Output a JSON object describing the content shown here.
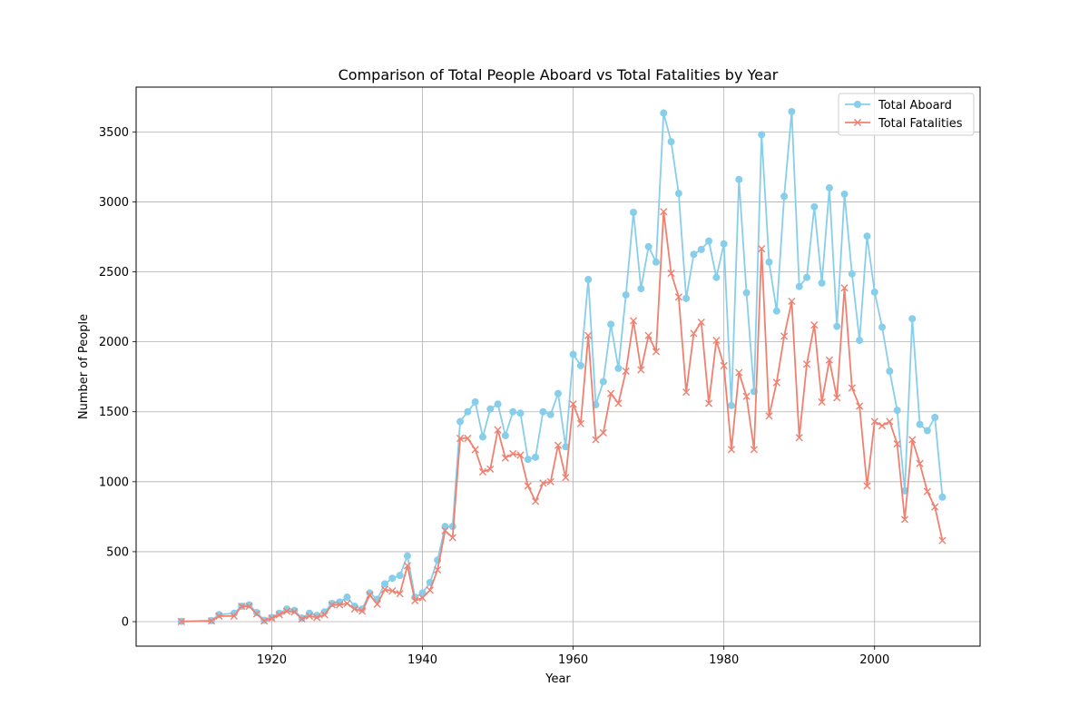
{
  "chart_data": {
    "type": "line",
    "title": "Comparison of Total People Aboard vs Total Fatalities by Year",
    "xlabel": "Year",
    "ylabel": "Number of People",
    "xlim": [
      1902,
      2014
    ],
    "ylim": [
      -175,
      3820
    ],
    "xticks": [
      1920,
      1940,
      1960,
      1980,
      2000
    ],
    "yticks": [
      0,
      500,
      1000,
      1500,
      2000,
      2500,
      3000,
      3500
    ],
    "grid": true,
    "legend_position": "top-right",
    "x": [
      1908,
      1912,
      1913,
      1915,
      1916,
      1917,
      1918,
      1919,
      1920,
      1921,
      1922,
      1923,
      1924,
      1925,
      1926,
      1927,
      1928,
      1929,
      1930,
      1931,
      1932,
      1933,
      1934,
      1935,
      1936,
      1937,
      1938,
      1939,
      1940,
      1941,
      1942,
      1943,
      1944,
      1945,
      1946,
      1947,
      1948,
      1949,
      1950,
      1951,
      1952,
      1953,
      1954,
      1955,
      1956,
      1957,
      1958,
      1959,
      1960,
      1961,
      1962,
      1963,
      1964,
      1965,
      1966,
      1967,
      1968,
      1969,
      1970,
      1971,
      1972,
      1973,
      1974,
      1975,
      1976,
      1977,
      1978,
      1979,
      1980,
      1981,
      1982,
      1983,
      1984,
      1985,
      1986,
      1987,
      1988,
      1989,
      1990,
      1991,
      1992,
      1993,
      1994,
      1995,
      1996,
      1997,
      1998,
      1999,
      2000,
      2001,
      2002,
      2003,
      2004,
      2005,
      2006,
      2007,
      2008,
      2009
    ],
    "series": [
      {
        "name": "Total Aboard",
        "color": "#87ceeb",
        "marker": "circle",
        "values": [
          2,
          7,
          50,
          60,
          110,
          120,
          65,
          10,
          30,
          60,
          90,
          80,
          25,
          60,
          45,
          70,
          130,
          140,
          175,
          110,
          90,
          205,
          160,
          270,
          310,
          330,
          470,
          175,
          205,
          280,
          440,
          680,
          680,
          1430,
          1500,
          1570,
          1320,
          1520,
          1555,
          1330,
          1500,
          1490,
          1160,
          1175,
          1500,
          1480,
          1630,
          1250,
          1910,
          1830,
          2445,
          1550,
          1715,
          2125,
          1810,
          2335,
          2925,
          2380,
          2680,
          2570,
          3635,
          3430,
          3060,
          2310,
          2625,
          2660,
          2720,
          2460,
          2700,
          1545,
          3160,
          2350,
          1645,
          3480,
          2570,
          2220,
          3040,
          3645,
          2395,
          2460,
          2965,
          2420,
          3100,
          2110,
          3055,
          2485,
          2010,
          2755,
          2355,
          2105,
          1790,
          1510,
          935,
          2165,
          1410,
          1365,
          1460,
          890
        ]
      },
      {
        "name": "Total Fatalities",
        "color": "#f08070",
        "marker": "x",
        "values": [
          1,
          5,
          40,
          40,
          110,
          110,
          55,
          5,
          25,
          50,
          75,
          70,
          20,
          40,
          30,
          50,
          120,
          120,
          130,
          90,
          75,
          190,
          125,
          230,
          220,
          200,
          400,
          150,
          170,
          225,
          370,
          650,
          600,
          1310,
          1310,
          1230,
          1070,
          1090,
          1370,
          1170,
          1200,
          1190,
          970,
          860,
          990,
          1000,
          1260,
          1030,
          1555,
          1415,
          2045,
          1300,
          1350,
          1630,
          1560,
          1790,
          2150,
          1800,
          2045,
          1930,
          2930,
          2490,
          2320,
          1640,
          2060,
          2140,
          1560,
          2010,
          1830,
          1230,
          1780,
          1610,
          1230,
          2665,
          1470,
          1710,
          2040,
          2290,
          1315,
          1840,
          2120,
          1570,
          1870,
          1600,
          2385,
          1670,
          1540,
          970,
          1430,
          1400,
          1430,
          1270,
          730,
          1300,
          1130,
          930,
          820,
          580
        ]
      }
    ]
  }
}
